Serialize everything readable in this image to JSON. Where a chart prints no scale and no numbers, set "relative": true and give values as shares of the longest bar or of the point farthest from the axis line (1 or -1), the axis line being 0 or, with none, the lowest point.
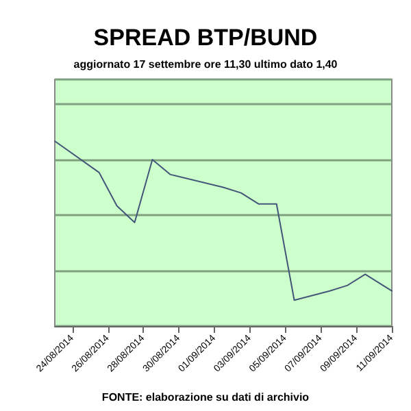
{
  "chart_data": {
    "type": "line",
    "title": "SPREAD BTP/BUND",
    "subtitle": "aggiornato 17 settembre ore 11,30 ultimo dato 1,40",
    "annotations": [
      "FONTE: elaborazione su dati di archivio"
    ],
    "relative": true,
    "grid": "y",
    "marker": "none",
    "line_style": "solid",
    "xlim": [
      "2014-08-23",
      "2014-09-11"
    ],
    "xticks": [
      {
        "value": "2014-08-24",
        "label": "24/08/2014"
      },
      {
        "value": "2014-08-26",
        "label": "26/08/2014"
      },
      {
        "value": "2014-08-28",
        "label": "28/08/2014"
      },
      {
        "value": "2014-08-30",
        "label": "30/08/2014"
      },
      {
        "value": "2014-09-01",
        "label": "01/09/2014"
      },
      {
        "value": "2014-09-03",
        "label": "03/09/2014"
      },
      {
        "value": "2014-09-05",
        "label": "05/09/2014"
      },
      {
        "value": "2014-09-07",
        "label": "07/09/2014"
      },
      {
        "value": "2014-09-09",
        "label": "09/09/2014"
      },
      {
        "value": "2014-09-11",
        "label": "11/09/2014"
      }
    ],
    "x": [
      "2014-08-23",
      "2014-08-25T12:00",
      "2014-08-26T12:00",
      "2014-08-27T12:00",
      "2014-08-28T12:00",
      "2014-08-29T12:00",
      "2014-09-01T12:00",
      "2014-09-02T12:00",
      "2014-09-03T12:00",
      "2014-09-04T12:00",
      "2014-09-05T12:00",
      "2014-09-07T12:00",
      "2014-09-08T12:00",
      "2014-09-09T12:00",
      "2014-09-10T12:00",
      "2014-09-11"
    ],
    "series": [
      {
        "color": "#44557a",
        "values": [
          1,
          0.83,
          0.65,
          0.56,
          0.9,
          0.82,
          0.75,
          0.72,
          0.66,
          0.66,
          0.14,
          0.19,
          0.22,
          0.28,
          0.22,
          0.19
        ]
      }
    ]
  }
}
